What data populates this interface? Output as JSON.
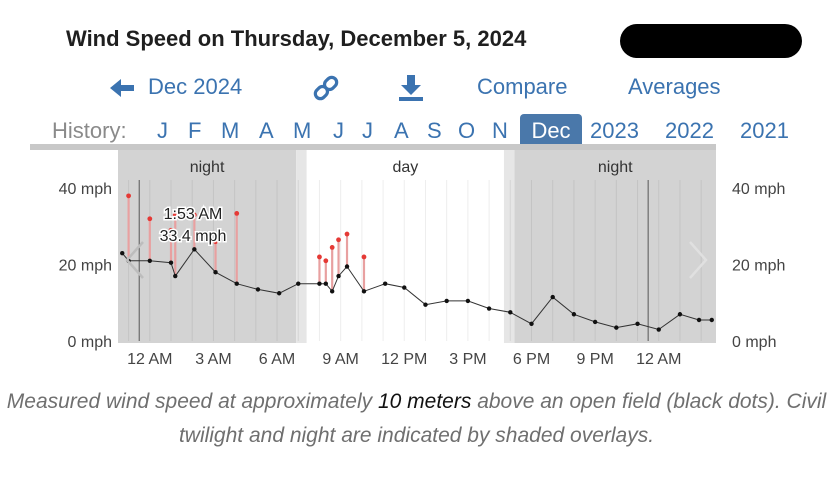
{
  "page_title": "Wind Speed on Thursday, December 5, 2024",
  "nav": {
    "back_label": "Dec 2024",
    "compare_label": "Compare",
    "averages_label": "Averages",
    "link_icon": "link-icon",
    "download_icon": "download-icon",
    "back_icon": "arrow-left-icon"
  },
  "history": {
    "label": "History:",
    "months": [
      "J",
      "F",
      "M",
      "A",
      "M",
      "J",
      "J",
      "A",
      "S",
      "O",
      "N"
    ],
    "selected": "Dec",
    "years": [
      "2023",
      "2022",
      "2021"
    ]
  },
  "caption": {
    "part1": "Measured wind speed at approximately ",
    "bold": "10 meters",
    "part2": " above an open field (black dots). Civil twilight and night are indicated by shaded overlays."
  },
  "chart_data": {
    "type": "line",
    "title": "",
    "ylabel": "",
    "xlabel": "",
    "ylim": [
      0,
      50
    ],
    "x_unit": "hours since midnight Dec 5",
    "xlim": [
      -1.5,
      26.7
    ],
    "y_ticks": [
      "0 mph",
      "20 mph",
      "40 mph"
    ],
    "y_tick_values": [
      0,
      20,
      40
    ],
    "x_ticks": [
      "12 AM",
      "3 AM",
      "6 AM",
      "9 AM",
      "12 PM",
      "3 PM",
      "6 PM",
      "9 PM",
      "12 AM"
    ],
    "x_tick_values": [
      0,
      3,
      6,
      9,
      12,
      15,
      18,
      21,
      24
    ],
    "shading": [
      {
        "label": "night",
        "type": "night",
        "from": -1.5,
        "to": 6.9
      },
      {
        "label": "",
        "type": "twilight",
        "from": 6.9,
        "to": 7.4
      },
      {
        "label": "day",
        "type": "day",
        "from": 7.4,
        "to": 16.7
      },
      {
        "label": "",
        "type": "twilight",
        "from": 16.7,
        "to": 17.2
      },
      {
        "label": "night",
        "type": "night",
        "from": 17.2,
        "to": 26.7
      }
    ],
    "midnight_lines": [
      -0.5,
      23.5
    ],
    "series": [
      {
        "name": "wind speed",
        "x": [
          -1.3,
          -1.0,
          0.0,
          1.0,
          1.2,
          2.1,
          3.1,
          4.1,
          5.1,
          6.1,
          7.0,
          8.0,
          8.3,
          8.6,
          8.9,
          9.3,
          10.1,
          11.1,
          12.0,
          13.0,
          14.0,
          15.0,
          16.0,
          17.0,
          18.0,
          19.0,
          20.0,
          21.0,
          22.0,
          23.0,
          24.0,
          25.0,
          25.9,
          26.5
        ],
        "y": [
          23,
          21,
          21,
          20.5,
          17,
          24,
          18,
          15,
          13.5,
          12.5,
          15,
          15,
          15,
          13,
          17,
          19.5,
          13,
          15,
          14,
          9.5,
          10.5,
          10.5,
          8.5,
          7.5,
          4.5,
          11.5,
          7,
          5,
          3.5,
          4.5,
          3,
          7,
          5.5,
          5.5
        ]
      },
      {
        "name": "gusts",
        "x": [
          -1.0,
          0.0,
          1.0,
          1.2,
          2.1,
          3.1,
          4.1,
          8.0,
          8.3,
          8.6,
          8.9,
          9.3,
          10.1
        ],
        "y": [
          38,
          32,
          29,
          33,
          33,
          26,
          33.4,
          22,
          21,
          24.5,
          26.5,
          28,
          22
        ]
      }
    ],
    "tooltip": {
      "time": "1:53 AM",
      "value": "33.4 mph"
    }
  }
}
